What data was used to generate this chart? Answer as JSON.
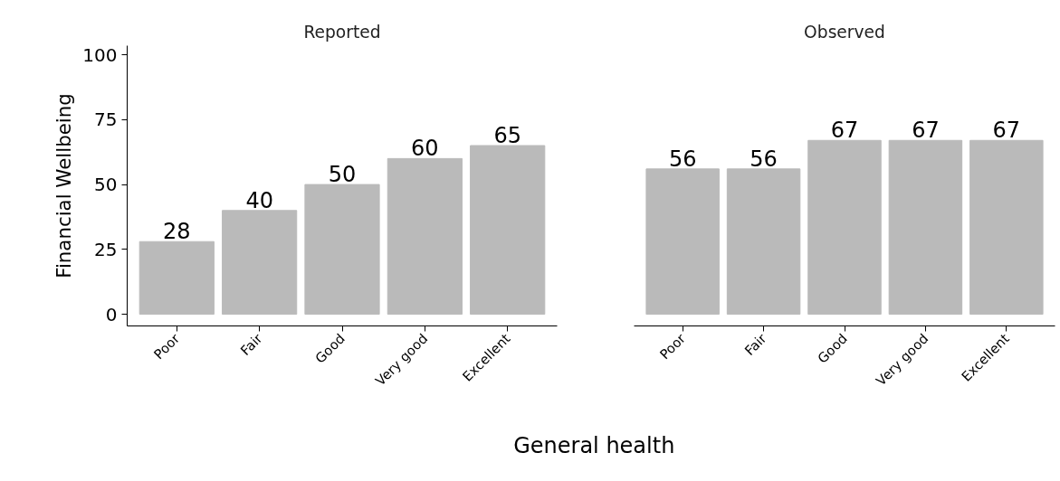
{
  "chart_data": [
    {
      "type": "bar",
      "title": "Reported",
      "ylabel": "Financial Wellbeing",
      "xlabel": "General health",
      "categories": [
        "Poor",
        "Fair",
        "Good",
        "Very good",
        "Excellent"
      ],
      "values": [
        28,
        40,
        50,
        60,
        65
      ],
      "color": "#bababa",
      "ylim": [
        -4.5,
        103.5
      ],
      "yticks": [
        0,
        25,
        50,
        75,
        100
      ],
      "data_labels": true
    },
    {
      "type": "bar",
      "title": "Observed",
      "categories": [
        "Poor",
        "Fair",
        "Good",
        "Very good",
        "Excellent"
      ],
      "values": [
        56,
        56,
        67,
        67,
        67
      ],
      "color": "#bababa",
      "data_labels": true,
      "tick_labels": "x"
    }
  ]
}
